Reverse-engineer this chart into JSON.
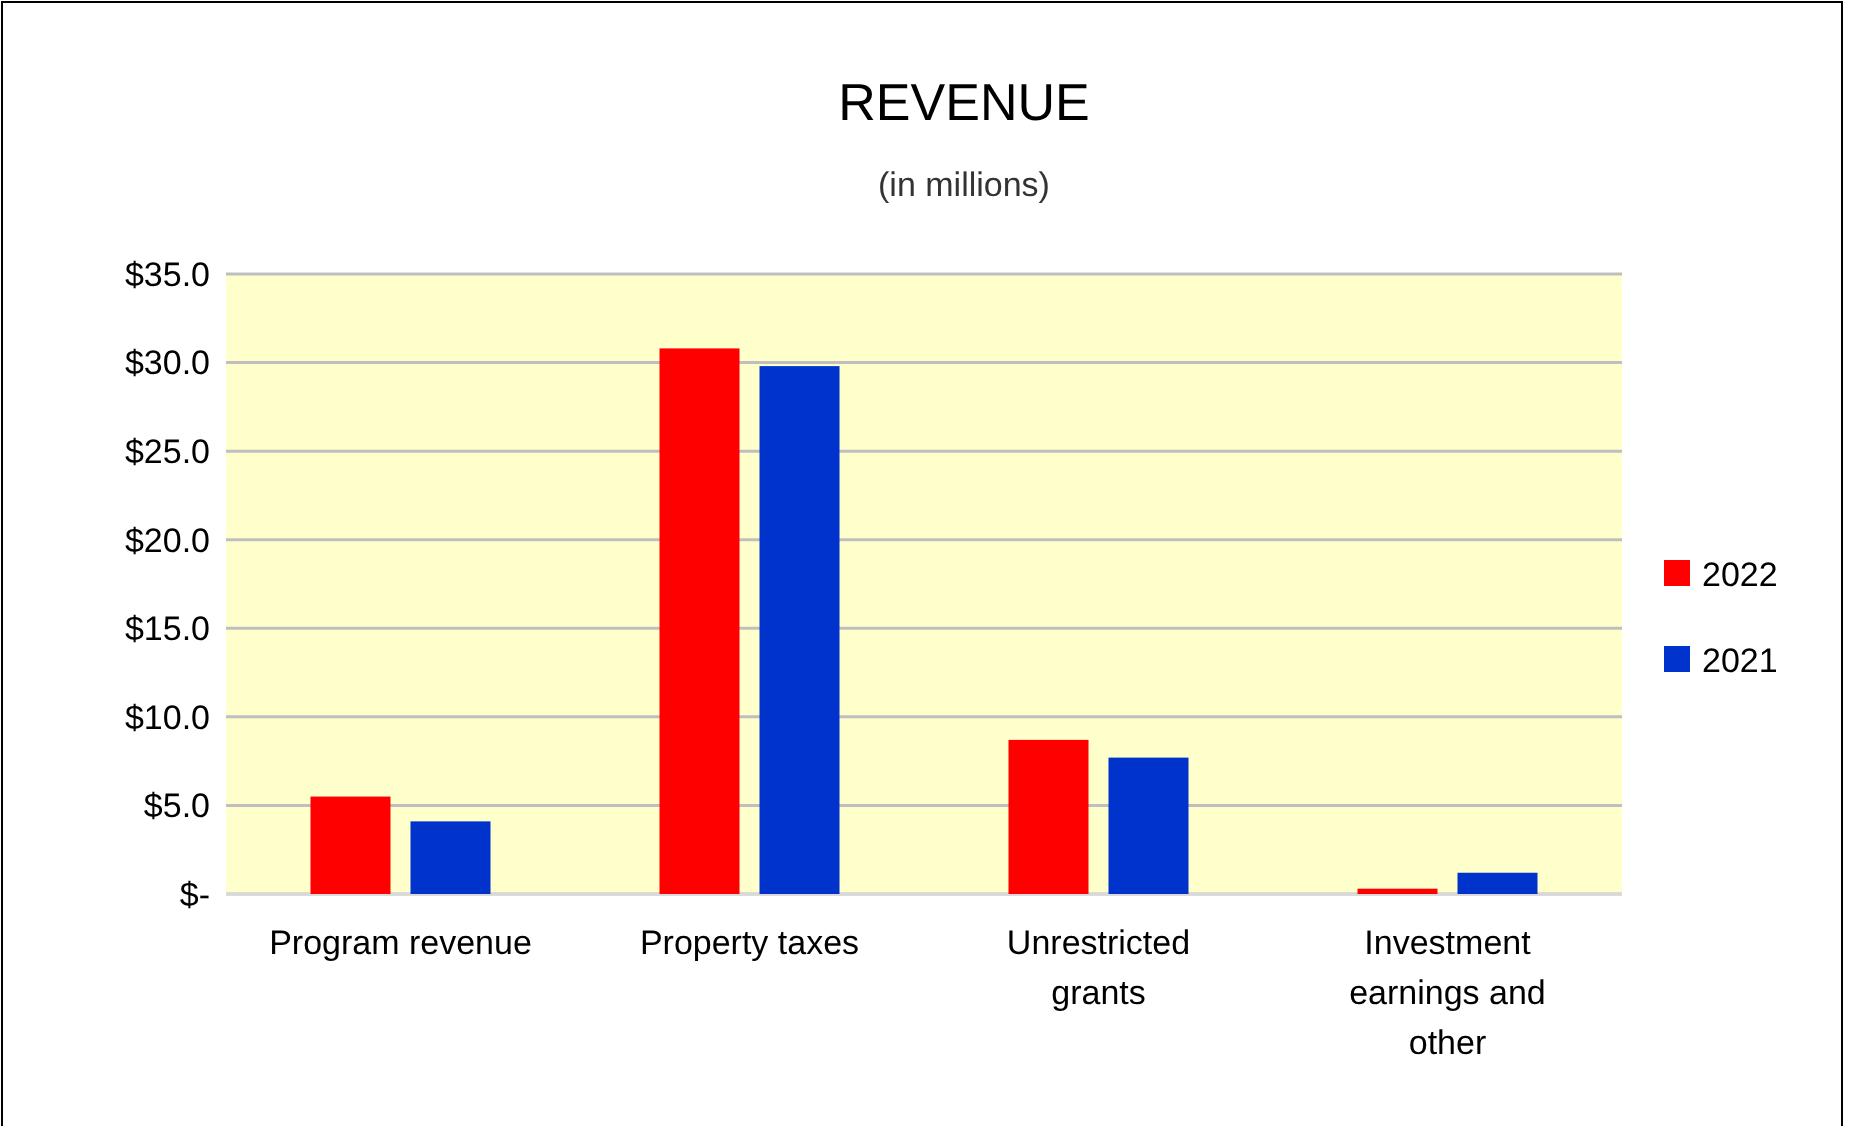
{
  "chart_data": {
    "type": "bar",
    "title": "REVENUE",
    "subtitle": "(in millions)",
    "categories": [
      "Program revenue",
      "Property taxes",
      "Unrestricted grants",
      "Investment earnings and other"
    ],
    "series": [
      {
        "name": "2022",
        "color": "#ff0000",
        "values": [
          5.5,
          30.8,
          8.7,
          0.3
        ]
      },
      {
        "name": "2021",
        "color": "#0033cc",
        "values": [
          4.1,
          29.8,
          7.7,
          1.2
        ]
      }
    ],
    "ylim": [
      0,
      35
    ],
    "yticks": [
      {
        "value": 0,
        "label": "$-"
      },
      {
        "value": 5,
        "label": "$5.0"
      },
      {
        "value": 10,
        "label": "$10.0"
      },
      {
        "value": 15,
        "label": "$15.0"
      },
      {
        "value": 20,
        "label": "$20.0"
      },
      {
        "value": 25,
        "label": "$25.0"
      },
      {
        "value": 30,
        "label": "$30.0"
      },
      {
        "value": 35,
        "label": "$35.0"
      }
    ],
    "grid": "y",
    "legend": "right"
  }
}
